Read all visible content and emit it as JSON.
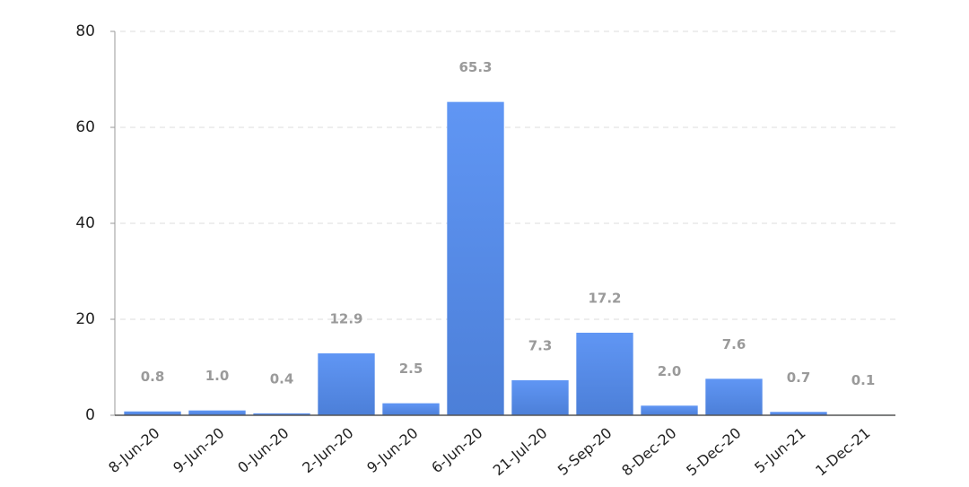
{
  "chart_data": {
    "type": "bar",
    "categories": [
      "8-Jun-20",
      "9-Jun-20",
      "0-Jun-20",
      "2-Jun-20",
      "9-Jun-20",
      "6-Jun-20",
      "21-Jul-20",
      "5-Sep-20",
      "8-Dec-20",
      "5-Dec-20",
      "5-Jun-21",
      "1-Dec-21"
    ],
    "values": [
      0.8,
      1.0,
      0.4,
      12.9,
      2.5,
      65.3,
      7.3,
      17.2,
      2.0,
      7.6,
      0.7,
      0.1
    ],
    "value_labels": [
      "0.8",
      "1.0",
      "0.4",
      "12.9",
      "2.5",
      "65.3",
      "7.3",
      "17.2",
      "2.0",
      "7.6",
      "0.7",
      "0.1"
    ],
    "color": "#5a8cec",
    "ylim": [
      0,
      80
    ],
    "yticks": [
      0,
      20,
      40,
      60,
      80
    ],
    "grid": true
  }
}
